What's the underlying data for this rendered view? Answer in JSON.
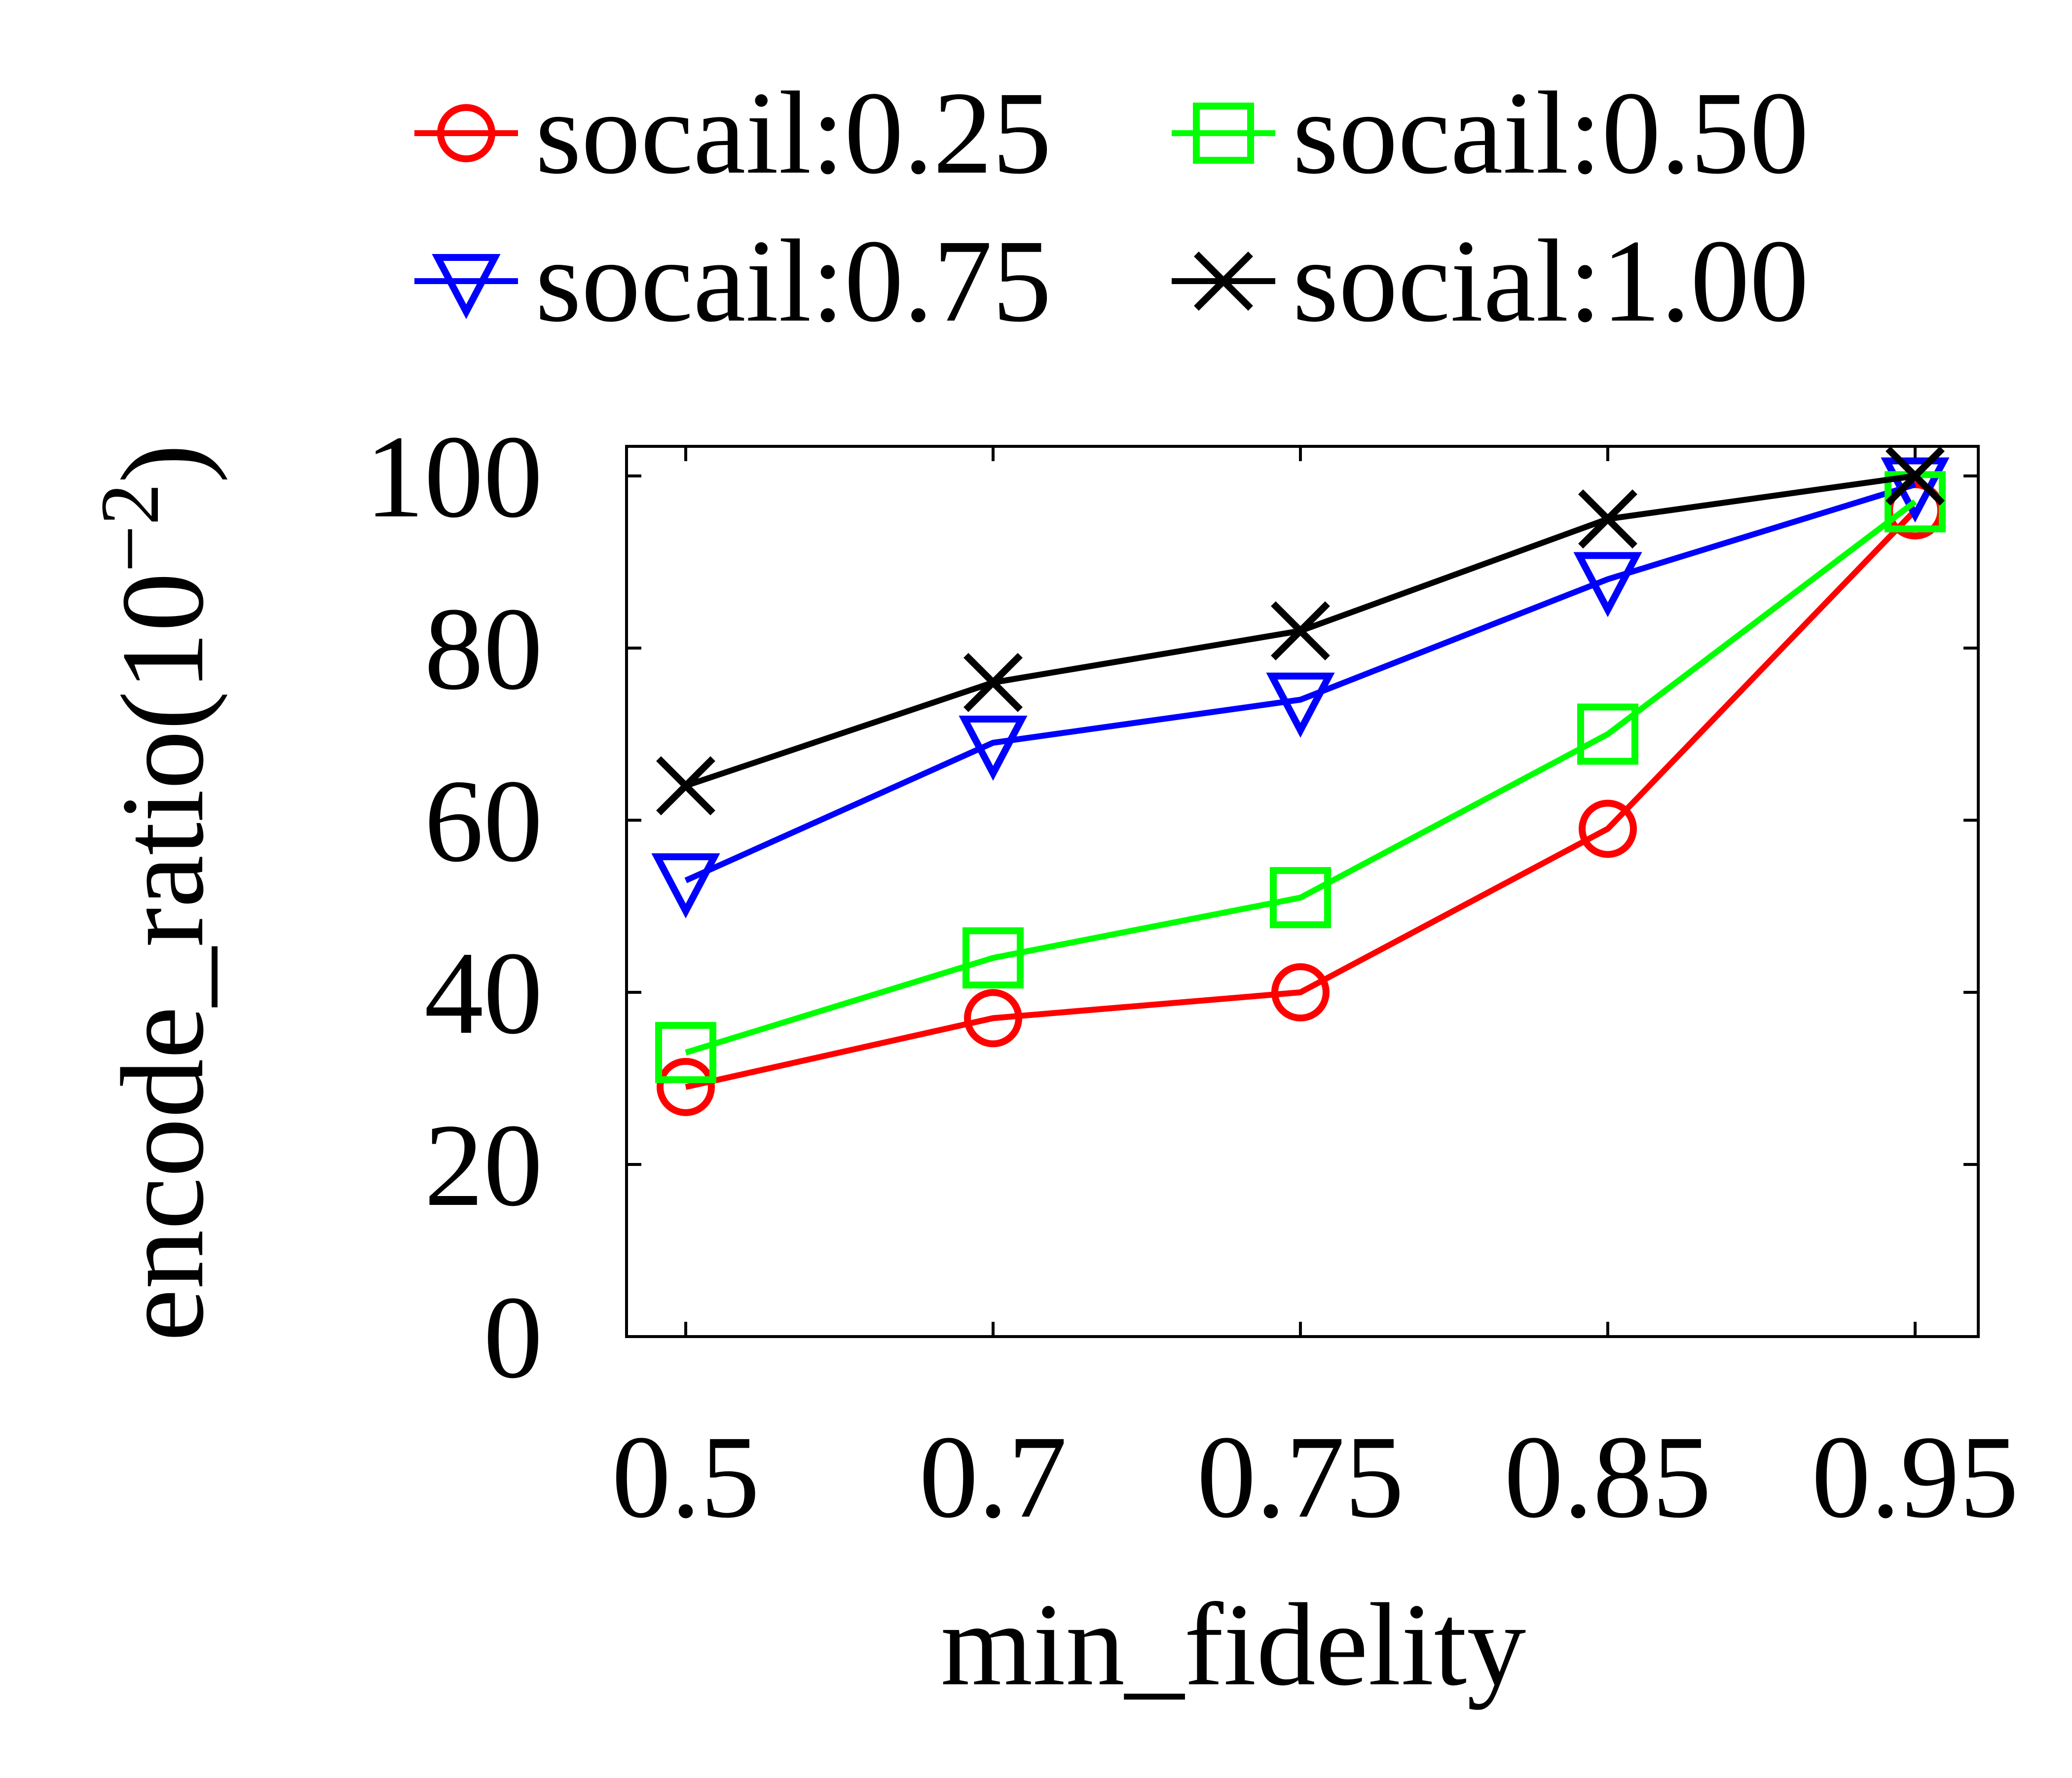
{
  "chart_data": {
    "type": "line",
    "title": "",
    "xlabel": "min_fidelity",
    "ylabel": "encode_ratio(10",
    "ylabel_exponent": "−2",
    "ylabel_close": ")",
    "categories": [
      "0.5",
      "0.7",
      "0.75",
      "0.85",
      "0.95"
    ],
    "ylim": [
      0,
      100
    ],
    "yticks": [
      "0",
      "20",
      "40",
      "60",
      "80",
      "100"
    ],
    "grid": false,
    "legend_position": "top",
    "series": [
      {
        "name": "socail:0.25",
        "color": "#ff0000",
        "marker": "circle",
        "values": [
          29,
          37,
          40,
          59,
          96
        ]
      },
      {
        "name": "socail:0.75",
        "color": "#0000ff",
        "marker": "triangle-down",
        "values": [
          53,
          69,
          74,
          88,
          99
        ]
      },
      {
        "name": "socail:0.50",
        "color": "#00ff00",
        "marker": "square",
        "values": [
          33,
          44,
          51,
          70,
          97
        ]
      },
      {
        "name": "social:1.00",
        "color": "#000000",
        "marker": "x",
        "values": [
          64,
          76,
          82,
          95,
          100
        ]
      }
    ]
  }
}
